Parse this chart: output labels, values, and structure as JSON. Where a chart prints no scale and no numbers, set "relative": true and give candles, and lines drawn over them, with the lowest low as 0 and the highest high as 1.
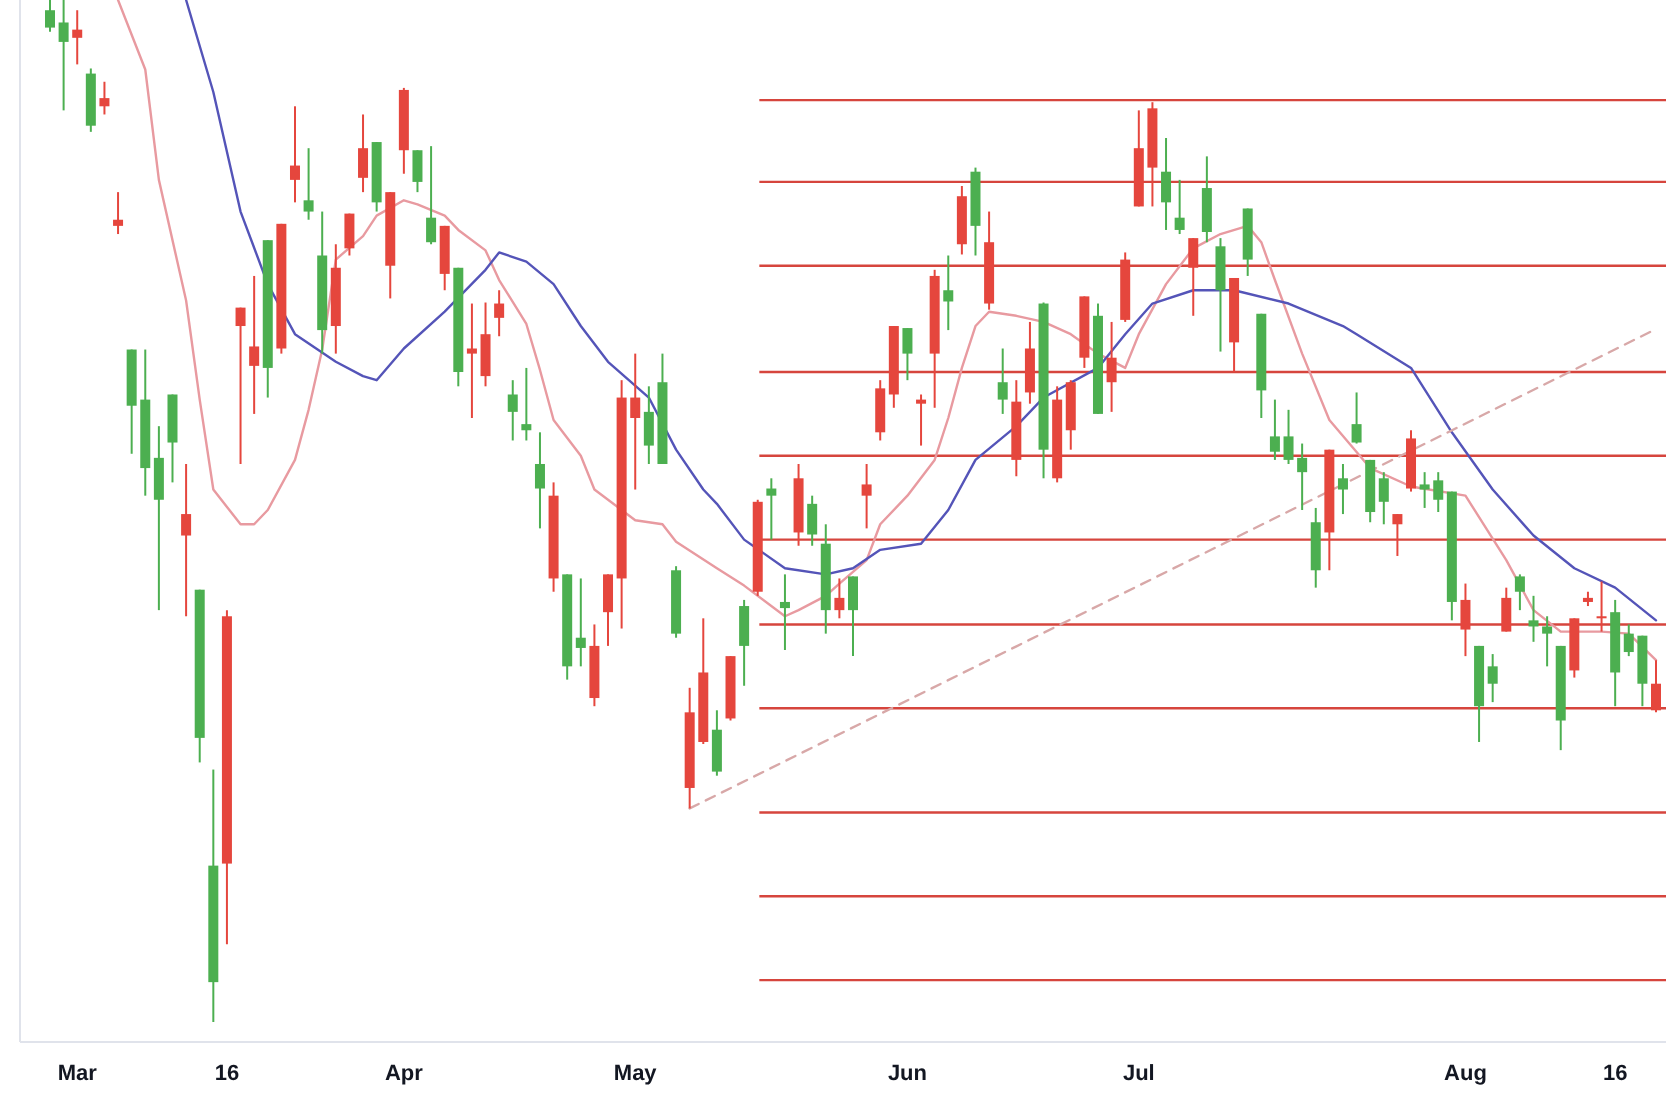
{
  "chart_data": {
    "type": "candlestick",
    "relative": true,
    "categories": [
      null,
      null,
      "Mar",
      null,
      null,
      null,
      null,
      null,
      null,
      null,
      null,
      null,
      null,
      "16",
      null,
      null,
      null,
      null,
      null,
      null,
      null,
      null,
      null,
      null,
      null,
      null,
      "Apr",
      null,
      null,
      null,
      null,
      null,
      null,
      null,
      null,
      null,
      null,
      null,
      null,
      null,
      null,
      null,
      null,
      "May",
      null,
      null,
      null,
      null,
      null,
      null,
      null,
      null,
      null,
      null,
      null,
      null,
      null,
      null,
      null,
      null,
      null,
      null,
      null,
      "Jun",
      null,
      null,
      null,
      null,
      null,
      null,
      null,
      null,
      null,
      null,
      null,
      null,
      null,
      null,
      null,
      null,
      "Jul",
      null,
      null,
      null,
      null,
      null,
      null,
      null,
      null,
      null,
      null,
      null,
      null,
      null,
      null,
      null,
      null,
      null,
      null,
      null,
      null,
      null,
      null,
      null,
      "Aug",
      null,
      null,
      null,
      null,
      null,
      null,
      null,
      null,
      null,
      null,
      "16",
      null,
      null,
      null
    ],
    "ohlc": [
      [
        0.99,
        1.0,
        0.969,
        0.973
      ],
      [
        0.978,
        1.0,
        0.892,
        0.959
      ],
      [
        0.963,
        0.99,
        0.937,
        0.971
      ],
      [
        0.928,
        0.933,
        0.871,
        0.877
      ],
      [
        0.896,
        0.92,
        0.888,
        0.904
      ],
      [
        0.779,
        0.812,
        0.771,
        0.785
      ],
      [
        0.658,
        0.658,
        0.556,
        0.603
      ],
      [
        0.609,
        0.658,
        0.515,
        0.542
      ],
      [
        0.552,
        0.583,
        0.403,
        0.511
      ],
      [
        0.614,
        0.614,
        0.528,
        0.567
      ],
      [
        0.476,
        0.546,
        0.397,
        0.497
      ],
      [
        0.423,
        0.423,
        0.254,
        0.278
      ],
      [
        0.153,
        0.247,
        0.0,
        0.039
      ],
      [
        0.155,
        0.403,
        0.076,
        0.397
      ],
      [
        0.681,
        0.699,
        0.546,
        0.699
      ],
      [
        0.642,
        0.73,
        0.595,
        0.661
      ],
      [
        0.765,
        0.765,
        0.611,
        0.64
      ],
      [
        0.659,
        0.781,
        0.654,
        0.781
      ],
      [
        0.824,
        0.896,
        0.802,
        0.838
      ],
      [
        0.804,
        0.855,
        0.785,
        0.793
      ],
      [
        0.75,
        0.793,
        0.654,
        0.677
      ],
      [
        0.681,
        0.761,
        0.654,
        0.738
      ],
      [
        0.757,
        0.791,
        0.75,
        0.791
      ],
      [
        0.826,
        0.888,
        0.812,
        0.855
      ],
      [
        0.861,
        0.861,
        0.793,
        0.802
      ],
      [
        0.74,
        0.812,
        0.708,
        0.812
      ],
      [
        0.853,
        0.914,
        0.83,
        0.912
      ],
      [
        0.853,
        0.853,
        0.812,
        0.822
      ],
      [
        0.787,
        0.857,
        0.761,
        0.763
      ],
      [
        0.732,
        0.779,
        0.716,
        0.779
      ],
      [
        0.738,
        0.738,
        0.622,
        0.636
      ],
      [
        0.654,
        0.703,
        0.591,
        0.659
      ],
      [
        0.632,
        0.704,
        0.622,
        0.673
      ],
      [
        0.689,
        0.716,
        0.671,
        0.703
      ],
      [
        0.614,
        0.628,
        0.569,
        0.597
      ],
      [
        0.585,
        0.64,
        0.569,
        0.579
      ],
      [
        0.546,
        0.577,
        0.483,
        0.522
      ],
      [
        0.434,
        0.528,
        0.421,
        0.515
      ],
      [
        0.438,
        0.438,
        0.335,
        0.348
      ],
      [
        0.376,
        0.434,
        0.348,
        0.366
      ],
      [
        0.317,
        0.389,
        0.309,
        0.368
      ],
      [
        0.401,
        0.438,
        0.368,
        0.438
      ],
      [
        0.434,
        0.628,
        0.385,
        0.611
      ],
      [
        0.591,
        0.654,
        0.521,
        0.611
      ],
      [
        0.597,
        0.622,
        0.546,
        0.564
      ],
      [
        0.626,
        0.654,
        0.546,
        0.546
      ],
      [
        0.442,
        0.446,
        0.376,
        0.38
      ],
      [
        0.229,
        0.327,
        0.209,
        0.303
      ],
      [
        0.274,
        0.395,
        0.272,
        0.342
      ],
      [
        0.286,
        0.305,
        0.241,
        0.245
      ],
      [
        0.297,
        0.358,
        0.295,
        0.358
      ],
      [
        0.407,
        0.413,
        0.329,
        0.368
      ],
      [
        0.421,
        0.511,
        0.417,
        0.509
      ],
      [
        0.522,
        0.532,
        0.472,
        0.515
      ],
      [
        0.411,
        0.438,
        0.364,
        0.405
      ],
      [
        0.479,
        0.546,
        0.466,
        0.532
      ],
      [
        0.507,
        0.515,
        0.466,
        0.477
      ],
      [
        0.468,
        0.487,
        0.38,
        0.403
      ],
      [
        0.403,
        0.434,
        0.395,
        0.415
      ],
      [
        0.436,
        0.436,
        0.358,
        0.403
      ],
      [
        0.515,
        0.546,
        0.483,
        0.526
      ],
      [
        0.577,
        0.628,
        0.569,
        0.62
      ],
      [
        0.614,
        0.681,
        0.601,
        0.681
      ],
      [
        0.679,
        0.679,
        0.628,
        0.654
      ],
      [
        0.605,
        0.614,
        0.564,
        0.609
      ],
      [
        0.654,
        0.736,
        0.601,
        0.73
      ],
      [
        0.716,
        0.75,
        0.677,
        0.705
      ],
      [
        0.761,
        0.818,
        0.751,
        0.808
      ],
      [
        0.832,
        0.836,
        0.75,
        0.779
      ],
      [
        0.703,
        0.793,
        0.697,
        0.763
      ],
      [
        0.626,
        0.659,
        0.595,
        0.609
      ],
      [
        0.55,
        0.628,
        0.534,
        0.607
      ],
      [
        0.616,
        0.685,
        0.605,
        0.659
      ],
      [
        0.703,
        0.704,
        0.532,
        0.56
      ],
      [
        0.532,
        0.622,
        0.528,
        0.609
      ],
      [
        0.579,
        0.628,
        0.56,
        0.626
      ],
      [
        0.65,
        0.71,
        0.64,
        0.71
      ],
      [
        0.691,
        0.703,
        0.595,
        0.595
      ],
      [
        0.626,
        0.685,
        0.597,
        0.65
      ],
      [
        0.687,
        0.753,
        0.685,
        0.746
      ],
      [
        0.798,
        0.892,
        0.798,
        0.855
      ],
      [
        0.836,
        0.9,
        0.798,
        0.894
      ],
      [
        0.832,
        0.865,
        0.775,
        0.802
      ],
      [
        0.787,
        0.824,
        0.771,
        0.775
      ],
      [
        0.738,
        0.767,
        0.691,
        0.767
      ],
      [
        0.816,
        0.847,
        0.763,
        0.773
      ],
      [
        0.759,
        0.767,
        0.656,
        0.716
      ],
      [
        0.665,
        0.728,
        0.636,
        0.728
      ],
      [
        0.796,
        0.796,
        0.73,
        0.746
      ],
      [
        0.693,
        0.693,
        0.591,
        0.618
      ],
      [
        0.573,
        0.609,
        0.55,
        0.558
      ],
      [
        0.573,
        0.599,
        0.546,
        0.55
      ],
      [
        0.552,
        0.566,
        0.501,
        0.538
      ],
      [
        0.489,
        0.503,
        0.425,
        0.442
      ],
      [
        0.479,
        0.56,
        0.442,
        0.56
      ],
      [
        0.532,
        0.546,
        0.497,
        0.521
      ],
      [
        0.585,
        0.616,
        0.566,
        0.567
      ],
      [
        0.55,
        0.55,
        0.489,
        0.499
      ],
      [
        0.532,
        0.538,
        0.487,
        0.509
      ],
      [
        0.487,
        0.497,
        0.456,
        0.497
      ],
      [
        0.522,
        0.579,
        0.519,
        0.571
      ],
      [
        0.526,
        0.538,
        0.503,
        0.521
      ],
      [
        0.53,
        0.538,
        0.499,
        0.511
      ],
      [
        0.519,
        0.519,
        0.393,
        0.411
      ],
      [
        0.384,
        0.429,
        0.358,
        0.413
      ],
      [
        0.368,
        0.368,
        0.274,
        0.309
      ],
      [
        0.348,
        0.36,
        0.313,
        0.331
      ],
      [
        0.382,
        0.425,
        0.382,
        0.415
      ],
      [
        0.436,
        0.438,
        0.403,
        0.421
      ],
      [
        0.393,
        0.417,
        0.372,
        0.387
      ],
      [
        0.387,
        0.397,
        0.348,
        0.38
      ],
      [
        0.368,
        0.368,
        0.266,
        0.295
      ],
      [
        0.344,
        0.395,
        0.337,
        0.395
      ],
      [
        0.411,
        0.421,
        0.407,
        0.415
      ],
      [
        0.395,
        0.431,
        0.382,
        0.397
      ],
      [
        0.401,
        0.413,
        0.309,
        0.342
      ],
      [
        0.38,
        0.389,
        0.358,
        0.362
      ],
      [
        0.378,
        0.378,
        0.309,
        0.331
      ],
      [
        0.305,
        0.354,
        0.303,
        0.331
      ]
    ],
    "colors": [
      "#4caf50",
      "#4caf50",
      "#e5463d",
      "#4caf50",
      "#e5463d",
      "#e5463d",
      "#4caf50",
      "#4caf50",
      "#4caf50",
      "#4caf50",
      "#e5463d",
      "#4caf50",
      "#4caf50",
      "#e5463d",
      "#e5463d",
      "#e5463d",
      "#4caf50",
      "#e5463d",
      "#e5463d",
      "#4caf50",
      "#4caf50",
      "#e5463d",
      "#e5463d",
      "#e5463d",
      "#4caf50",
      "#e5463d",
      "#e5463d",
      "#4caf50",
      "#4caf50",
      "#e5463d",
      "#4caf50",
      "#e5463d",
      "#e5463d",
      "#e5463d",
      "#4caf50",
      "#4caf50",
      "#4caf50",
      "#e5463d",
      "#4caf50",
      "#4caf50",
      "#e5463d",
      "#e5463d",
      "#e5463d",
      "#e5463d",
      "#4caf50",
      "#4caf50",
      "#4caf50",
      "#e5463d",
      "#e5463d",
      "#4caf50",
      "#e5463d",
      "#4caf50",
      "#e5463d",
      "#4caf50",
      "#4caf50",
      "#e5463d",
      "#4caf50",
      "#4caf50",
      "#e5463d",
      "#4caf50",
      "#e5463d",
      "#e5463d",
      "#e5463d",
      "#4caf50",
      "#e5463d",
      "#e5463d",
      "#4caf50",
      "#e5463d",
      "#4caf50",
      "#e5463d",
      "#4caf50",
      "#e5463d",
      "#e5463d",
      "#4caf50",
      "#e5463d",
      "#e5463d",
      "#e5463d",
      "#4caf50",
      "#e5463d",
      "#e5463d",
      "#e5463d",
      "#e5463d",
      "#4caf50",
      "#4caf50",
      "#e5463d",
      "#4caf50",
      "#4caf50",
      "#e5463d",
      "#4caf50",
      "#4caf50",
      "#4caf50",
      "#4caf50",
      "#4caf50",
      "#4caf50",
      "#e5463d",
      "#4caf50",
      "#4caf50",
      "#4caf50",
      "#4caf50",
      "#e5463d",
      "#e5463d",
      "#4caf50",
      "#4caf50",
      "#4caf50",
      "#e5463d",
      "#4caf50",
      "#4caf50",
      "#e5463d",
      "#4caf50",
      "#4caf50",
      "#4caf50",
      "#4caf50",
      "#e5463d",
      "#e5463d",
      "#e5463d",
      "#4caf50",
      "#4caf50",
      "#4caf50",
      "#e5463d"
    ],
    "series": [
      {
        "type": "line",
        "color": "#e89aa0",
        "values": [
          null,
          null,
          null,
          null,
          null,
          1.0,
          null,
          0.932,
          0.824,
          null,
          0.706,
          0.609,
          0.521,
          null,
          0.487,
          0.487,
          0.501,
          null,
          0.55,
          0.599,
          0.658,
          0.746,
          null,
          0.769,
          0.789,
          null,
          0.804,
          0.8,
          null,
          0.789,
          0.775,
          null,
          0.755,
          0.726,
          null,
          0.683,
          0.638,
          0.589,
          null,
          0.554,
          0.521,
          null,
          0.501,
          0.491,
          null,
          0.487,
          0.47,
          null,
          null,
          0.444,
          null,
          0.427,
          null,
          null,
          0.397,
          0.403,
          null,
          0.417,
          0.429,
          null,
          0.452,
          0.487,
          null,
          0.515,
          null,
          0.55,
          0.591,
          0.64,
          0.681,
          0.695,
          null,
          0.691,
          null,
          0.685,
          null,
          0.673,
          null,
          0.654,
          null,
          0.64,
          0.673,
          null,
          0.722,
          null,
          0.757,
          null,
          0.771,
          null,
          0.779,
          0.763,
          0.726,
          null,
          0.654,
          null,
          0.589,
          null,
          null,
          0.542,
          null,
          null,
          0.524,
          null,
          null,
          null,
          0.515,
          null,
          null,
          0.452,
          null,
          0.403,
          null,
          0.382,
          null,
          null,
          0.382,
          null,
          0.38,
          null,
          0.354
        ]
      },
      {
        "type": "line",
        "color": "#5454b8",
        "values": [
          null,
          null,
          null,
          null,
          null,
          null,
          null,
          null,
          null,
          null,
          1.0,
          null,
          0.91,
          null,
          0.793,
          null,
          0.722,
          null,
          0.673,
          null,
          null,
          0.646,
          null,
          0.632,
          0.628,
          null,
          0.659,
          null,
          null,
          0.695,
          null,
          null,
          0.736,
          0.753,
          null,
          0.744,
          null,
          0.722,
          null,
          0.681,
          null,
          0.646,
          null,
          null,
          0.611,
          null,
          0.56,
          null,
          0.521,
          0.507,
          null,
          0.472,
          null,
          null,
          0.444,
          null,
          null,
          0.438,
          null,
          0.444,
          null,
          0.462,
          null,
          null,
          0.468,
          null,
          0.501,
          null,
          0.55,
          null,
          null,
          0.583,
          null,
          0.611,
          null,
          null,
          null,
          0.64,
          null,
          0.673,
          null,
          0.703,
          null,
          null,
          0.716,
          null,
          null,
          0.716,
          null,
          null,
          null,
          0.703,
          null,
          null,
          null,
          0.681,
          0.673,
          null,
          null,
          null,
          0.64,
          null,
          null,
          0.577,
          null,
          null,
          0.521,
          null,
          null,
          0.476,
          null,
          null,
          0.444,
          null,
          null,
          0.425,
          null,
          null,
          0.393
        ]
      },
      {
        "type": "line",
        "color": "#d8a8a8",
        "line_style": "dashed",
        "values": [
          null,
          null,
          null,
          null,
          null,
          null,
          null,
          null,
          null,
          null,
          null,
          null,
          null,
          null,
          null,
          null,
          null,
          null,
          null,
          null,
          null,
          null,
          null,
          null,
          null,
          null,
          null,
          null,
          null,
          null,
          null,
          null,
          null,
          null,
          null,
          null,
          null,
          null,
          null,
          null,
          null,
          null,
          null,
          null,
          null,
          null,
          null,
          0.209,
          null,
          null,
          null,
          null,
          null,
          null,
          null,
          null,
          null,
          null,
          null,
          null,
          null,
          null,
          null,
          null,
          null,
          null,
          null,
          null,
          null,
          null,
          null,
          null,
          null,
          null,
          null,
          null,
          null,
          null,
          null,
          null,
          null,
          null,
          null,
          null,
          null,
          null,
          null,
          null,
          null,
          null,
          null,
          null,
          null,
          null,
          null,
          null,
          null,
          null,
          null,
          null,
          null,
          null,
          null,
          null,
          null,
          null,
          null,
          null,
          null,
          null,
          null,
          null,
          null,
          null,
          null,
          null,
          null,
          null,
          0.678
        ]
      }
    ],
    "ref_lines": [
      {
        "axis": "y",
        "value": 0.902,
        "color": "#d6453d"
      },
      {
        "axis": "y",
        "value": 0.822,
        "color": "#d6453d"
      },
      {
        "axis": "y",
        "value": 0.74,
        "color": "#d6453d"
      },
      {
        "axis": "y",
        "value": 0.636,
        "color": "#d6453d"
      },
      {
        "axis": "y",
        "value": 0.554,
        "color": "#d6453d"
      },
      {
        "axis": "y",
        "value": 0.472,
        "color": "#d6453d"
      },
      {
        "axis": "y",
        "value": 0.389,
        "color": "#d6453d"
      },
      {
        "axis": "y",
        "value": 0.307,
        "color": "#d6453d"
      },
      {
        "axis": "y",
        "value": 0.205,
        "color": "#d6453d"
      },
      {
        "axis": "y",
        "value": 0.123,
        "color": "#d6453d"
      },
      {
        "axis": "y",
        "value": 0.041,
        "color": "#d6453d"
      }
    ]
  }
}
